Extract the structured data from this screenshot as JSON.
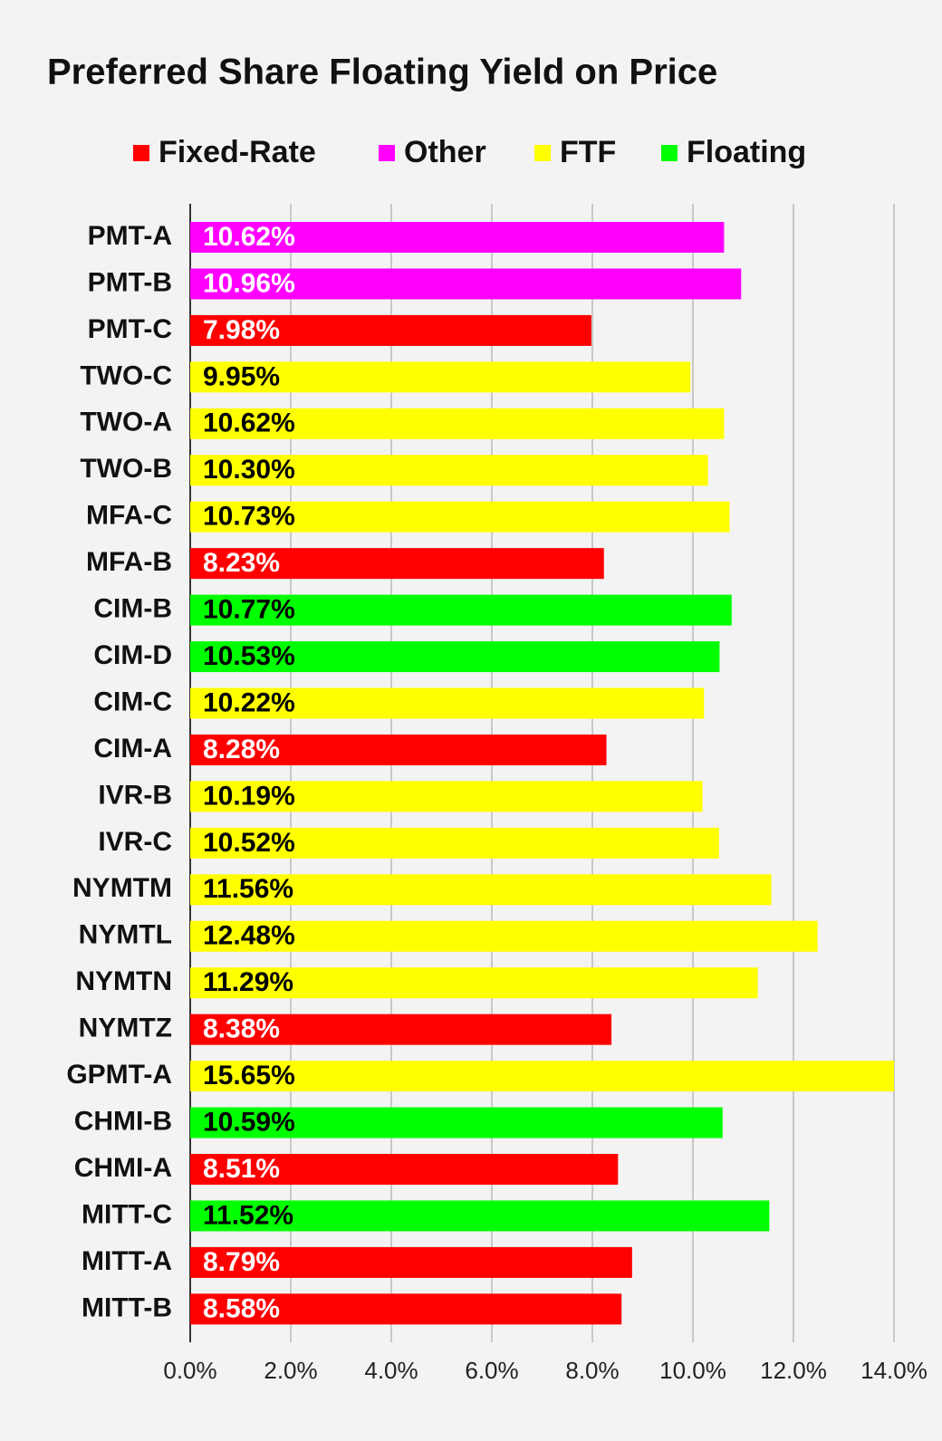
{
  "chart_data": {
    "type": "bar",
    "orientation": "horizontal",
    "title": "Preferred Share Floating Yield on Price",
    "categories": [
      "PMT-A",
      "PMT-B",
      "PMT-C",
      "TWO-C",
      "TWO-A",
      "TWO-B",
      "MFA-C",
      "MFA-B",
      "CIM-B",
      "CIM-D",
      "CIM-C",
      "CIM-A",
      "IVR-B",
      "IVR-C",
      "NYMTM",
      "NYMTL",
      "NYMTN",
      "NYMTZ",
      "GPMT-A",
      "CHMI-B",
      "CHMI-A",
      "MITT-C",
      "MITT-A",
      "MITT-B"
    ],
    "series": [
      {
        "name": "Fixed-Rate",
        "color": "#ff0000",
        "label_color": "#ffffff",
        "values": [
          null,
          null,
          7.98,
          null,
          null,
          null,
          null,
          8.23,
          null,
          null,
          null,
          8.28,
          null,
          null,
          null,
          null,
          null,
          8.38,
          null,
          null,
          8.51,
          null,
          8.79,
          8.58
        ],
        "value_labels": [
          null,
          null,
          "7.98%",
          null,
          null,
          null,
          null,
          "8.23%",
          null,
          null,
          null,
          "8.28%",
          null,
          null,
          null,
          null,
          null,
          "8.38%",
          null,
          null,
          "8.51%",
          null,
          "8.79%",
          "8.58%"
        ]
      },
      {
        "name": "Other",
        "color": "#ff00ff",
        "label_color": "#ffffff",
        "values": [
          10.62,
          10.96,
          null,
          null,
          null,
          null,
          null,
          null,
          null,
          null,
          null,
          null,
          null,
          null,
          null,
          null,
          null,
          null,
          null,
          null,
          null,
          null,
          null,
          null
        ],
        "value_labels": [
          "10.62%",
          "10.96%",
          null,
          null,
          null,
          null,
          null,
          null,
          null,
          null,
          null,
          null,
          null,
          null,
          null,
          null,
          null,
          null,
          null,
          null,
          null,
          null,
          null,
          null
        ]
      },
      {
        "name": "FTF",
        "color": "#ffff00",
        "label_color": "#000000",
        "values": [
          null,
          null,
          null,
          9.95,
          10.62,
          10.3,
          10.73,
          null,
          null,
          null,
          10.22,
          null,
          10.19,
          10.52,
          11.56,
          12.48,
          11.29,
          null,
          15.65,
          null,
          null,
          null,
          null,
          null
        ],
        "value_labels": [
          null,
          null,
          null,
          "9.95%",
          "10.62%",
          "10.30%",
          "10.73%",
          null,
          null,
          null,
          "10.22%",
          null,
          "10.19%",
          "10.52%",
          "11.56%",
          "12.48%",
          "11.29%",
          null,
          "15.65%",
          null,
          null,
          null,
          null,
          null
        ]
      },
      {
        "name": "Floating",
        "color": "#00ff00",
        "label_color": "#000000",
        "values": [
          null,
          null,
          null,
          null,
          null,
          null,
          null,
          null,
          10.77,
          10.53,
          null,
          null,
          null,
          null,
          null,
          null,
          null,
          null,
          null,
          10.59,
          null,
          11.52,
          null,
          null
        ],
        "value_labels": [
          null,
          null,
          null,
          null,
          null,
          null,
          null,
          null,
          "10.77%",
          "10.53%",
          null,
          null,
          null,
          null,
          null,
          null,
          null,
          null,
          null,
          "10.59%",
          null,
          "11.52%",
          null,
          null
        ]
      }
    ],
    "xlim": [
      0,
      14
    ],
    "xticks": [
      {
        "value": 0,
        "label": "0.0%"
      },
      {
        "value": 2,
        "label": "2.0%"
      },
      {
        "value": 4,
        "label": "4.0%"
      },
      {
        "value": 6,
        "label": "6.0%"
      },
      {
        "value": 8,
        "label": "8.0%"
      },
      {
        "value": 10,
        "label": "10.0%"
      },
      {
        "value": 12,
        "label": "12.0%"
      },
      {
        "value": 14,
        "label": "14.0%"
      }
    ],
    "grid": true,
    "legend": "top"
  }
}
